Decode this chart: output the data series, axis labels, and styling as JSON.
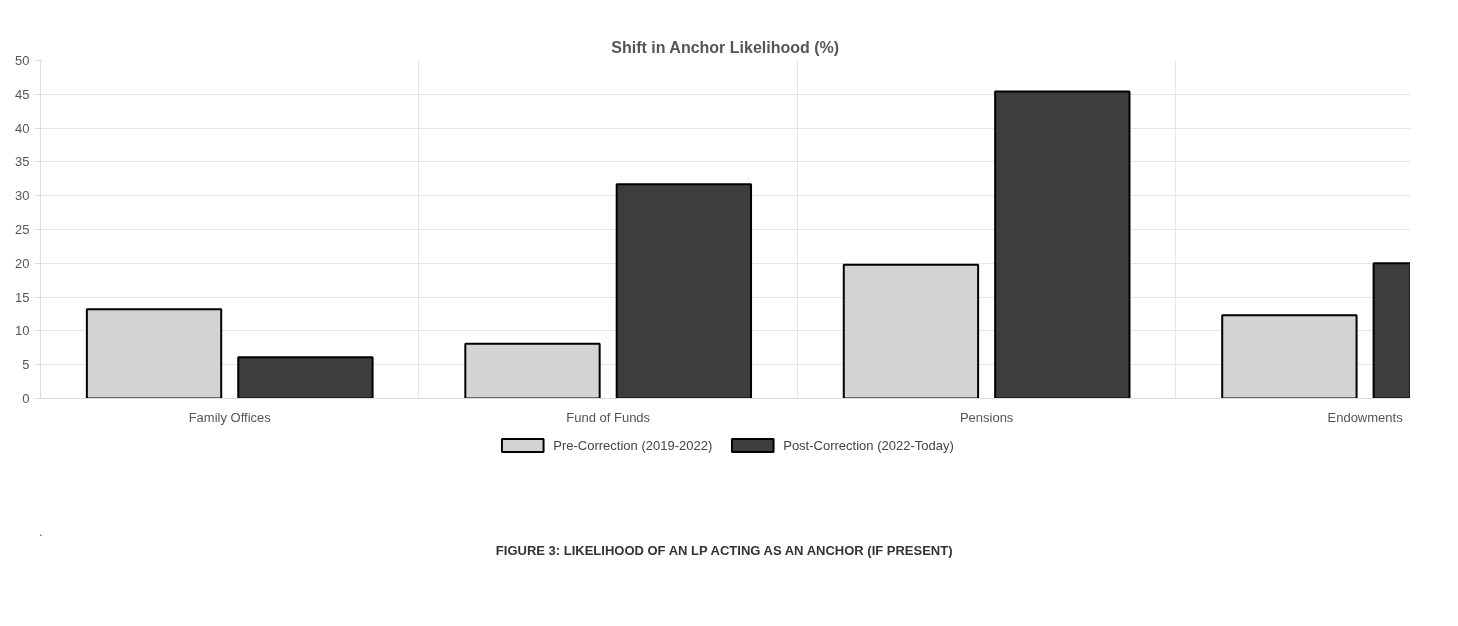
{
  "chart_data": {
    "type": "bar",
    "title": "Shift in Anchor Likelihood (%)",
    "categories": [
      "Family Offices",
      "Fund of Funds",
      "Pensions",
      "Endowments"
    ],
    "series": [
      {
        "name": "Pre-Correction (2019-2022)",
        "color": "#d3d3d3",
        "values": [
          13.2,
          8.1,
          19.8,
          12.3
        ]
      },
      {
        "name": "Post-Correction (2022-Today)",
        "color": "#3d3d3d",
        "values": [
          6.1,
          31.7,
          45.4,
          20
        ]
      }
    ],
    "ylim": [
      0,
      50
    ],
    "yticks": [
      0,
      5,
      10,
      15,
      20,
      25,
      30,
      35,
      40,
      45,
      50
    ],
    "grid": true,
    "legend": "bottom",
    "annotations": [
      "FIGURE 3: LIKELIHOOD OF AN LP ACTING AS AN ANCHOR (IF PRESENT)"
    ]
  }
}
